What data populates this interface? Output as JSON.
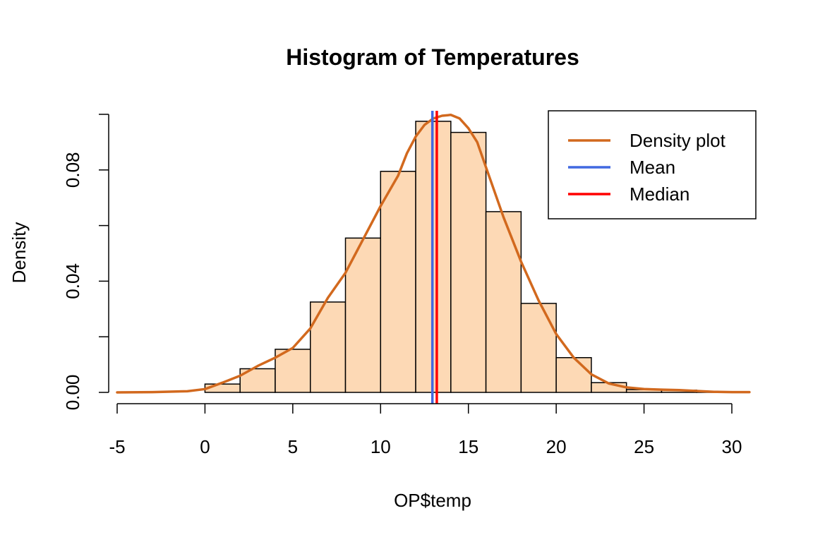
{
  "chart_data": {
    "type": "histogram",
    "title": "Histogram of Temperatures",
    "xlabel": "OP$temp",
    "ylabel": "Density",
    "xlim": [
      -5,
      31
    ],
    "ylim": [
      0,
      0.1
    ],
    "x_ticks": [
      -5,
      0,
      5,
      10,
      15,
      20,
      25,
      30
    ],
    "x_tick_labels": [
      "-5",
      "0",
      "5",
      "10",
      "15",
      "20",
      "25",
      "30"
    ],
    "y_ticks": [
      0,
      0.02,
      0.04,
      0.06,
      0.08,
      0.1
    ],
    "y_tick_labels": [
      "0.00",
      "",
      "0.04",
      "",
      "0.08",
      ""
    ],
    "bins": [
      {
        "x0": 0,
        "x1": 2,
        "density": 0.003
      },
      {
        "x0": 2,
        "x1": 4,
        "density": 0.0085
      },
      {
        "x0": 4,
        "x1": 6,
        "density": 0.0155
      },
      {
        "x0": 6,
        "x1": 8,
        "density": 0.0325
      },
      {
        "x0": 8,
        "x1": 10,
        "density": 0.0555
      },
      {
        "x0": 10,
        "x1": 12,
        "density": 0.0795
      },
      {
        "x0": 12,
        "x1": 14,
        "density": 0.0975
      },
      {
        "x0": 14,
        "x1": 16,
        "density": 0.0935
      },
      {
        "x0": 16,
        "x1": 18,
        "density": 0.065
      },
      {
        "x0": 18,
        "x1": 20,
        "density": 0.032
      },
      {
        "x0": 20,
        "x1": 22,
        "density": 0.0125
      },
      {
        "x0": 22,
        "x1": 24,
        "density": 0.0035
      },
      {
        "x0": 24,
        "x1": 26,
        "density": 0.001
      },
      {
        "x0": 26,
        "x1": 28,
        "density": 0.0008
      },
      {
        "x0": 28,
        "x1": 30,
        "density": 0.0003
      }
    ],
    "density_curve": {
      "name": "Density plot",
      "x": [
        -5,
        -3,
        -1,
        0,
        1,
        2,
        3,
        4,
        5,
        6,
        7,
        8,
        9,
        10,
        11,
        11.5,
        12,
        12.5,
        13,
        13.5,
        14,
        14.5,
        15,
        15.5,
        16,
        17,
        18,
        19,
        20,
        21,
        22,
        23,
        24,
        25,
        26,
        27,
        28,
        29,
        30,
        31
      ],
      "y": [
        0,
        0.0001,
        0.0004,
        0.0012,
        0.0035,
        0.006,
        0.0095,
        0.0125,
        0.016,
        0.023,
        0.034,
        0.043,
        0.055,
        0.067,
        0.078,
        0.086,
        0.092,
        0.0962,
        0.0985,
        0.0995,
        0.0998,
        0.0985,
        0.095,
        0.09,
        0.081,
        0.063,
        0.047,
        0.033,
        0.021,
        0.0125,
        0.0065,
        0.0032,
        0.0018,
        0.0012,
        0.001,
        0.0008,
        0.0005,
        0.0002,
        0.0001,
        0.0001
      ],
      "color": "#D2691E"
    },
    "mean": {
      "name": "Mean",
      "value": 12.95,
      "color": "#4169E1"
    },
    "median": {
      "name": "Median",
      "value": 13.2,
      "color": "#FF0000"
    },
    "bar_fill": "#FDD9B5",
    "bar_stroke": "#000000",
    "legend": {
      "position": "top-right",
      "entries": [
        {
          "label": "Density plot",
          "color": "#D2691E"
        },
        {
          "label": "Mean",
          "color": "#4169E1"
        },
        {
          "label": "Median",
          "color": "#FF0000"
        }
      ]
    }
  }
}
